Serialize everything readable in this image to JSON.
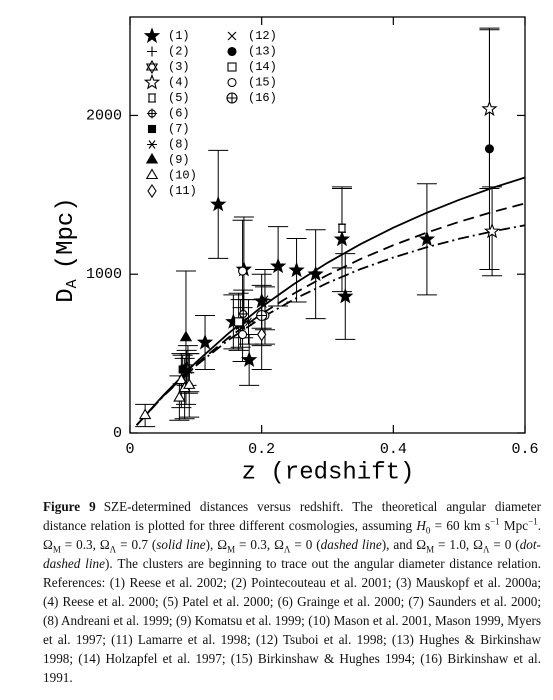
{
  "chart_data": {
    "type": "scatter",
    "xlabel": "z (redshift)",
    "ylabel": {
      "main": "D",
      "sub": "A",
      "unit": "(Mpc)"
    },
    "xlim": [
      0,
      0.6
    ],
    "ylim": [
      0,
      2620
    ],
    "xticks": [
      {
        "value": 0,
        "label": "0"
      },
      0.2,
      0.4,
      0.6
    ],
    "yticks": [
      0,
      1000,
      2000
    ],
    "series": [
      {
        "name": "(1)",
        "marker": "filled-star",
        "x": [
          0.134,
          0.173,
          0.225,
          0.253,
          0.282,
          0.322,
          0.327,
          0.451,
          0.168,
          0.181,
          0.114,
          0.157,
          0.2
        ],
        "values": [
          1440,
          1030,
          1050,
          1025,
          1000,
          1220,
          860,
          1220,
          690,
          460,
          570,
          700,
          830
        ],
        "errors": [
          340,
          330,
          250,
          200,
          280,
          330,
          270,
          350,
          150,
          160,
          170,
          170,
          170
        ]
      },
      {
        "name": "(2)",
        "marker": "plus",
        "x": [
          0.09
        ],
        "values": [
          380
        ],
        "errors": [
          120
        ]
      },
      {
        "name": "(3)",
        "marker": "star-of-david",
        "x": [
          0.086
        ],
        "values": [
          410
        ],
        "errors": [
          110
        ]
      },
      {
        "name": "(4)",
        "marker": "open-star",
        "x": [
          0.546,
          0.55
        ],
        "values": [
          2040,
          1270
        ],
        "errors": [
          500,
          280
        ]
      },
      {
        "name": "(5)",
        "marker": "notched-square",
        "x": [
          0.322
        ],
        "values": [
          1290
        ],
        "errors": [
          250
        ]
      },
      {
        "name": "(6)",
        "marker": "small-circle-plus",
        "x": [
          0.172
        ],
        "values": [
          750
        ],
        "errors": [
          150
        ]
      },
      {
        "name": "(7)",
        "marker": "filled-square",
        "x": [
          0.08
        ],
        "values": [
          400
        ],
        "errors": [
          90
        ]
      },
      {
        "name": "(8)",
        "marker": "asterisk",
        "x": [
          0.18,
          0.205
        ],
        "values": [
          700,
          840
        ],
        "errors": [
          140,
          190
        ]
      },
      {
        "name": "(9)",
        "marker": "filled-triangle",
        "x": [
          0.085
        ],
        "values": [
          600
        ],
        "errors": [
          420
        ]
      },
      {
        "name": "(10)",
        "marker": "open-triangle",
        "x": [
          0.023,
          0.078,
          0.083,
          0.09,
          0.075
        ],
        "values": [
          110,
          330,
          280,
          300,
          220
        ],
        "errors": [
          70,
          170,
          190,
          200,
          140
        ]
      },
      {
        "name": "(11)",
        "marker": "open-diamond",
        "x": [
          0.2
        ],
        "values": [
          620
        ],
        "errors": [
          220
        ]
      },
      {
        "name": "(12)",
        "marker": "cross",
        "x": [
          0.088
        ],
        "values": [
          400
        ],
        "errors": [
          150
        ]
      },
      {
        "name": "(13)",
        "marker": "filled-circle",
        "x": [
          0.546
        ],
        "values": [
          1790
        ],
        "errors": [
          760
        ]
      },
      {
        "name": "(14)",
        "marker": "open-square",
        "x": [
          0.165
        ],
        "values": [
          700
        ],
        "errors": [
          180
        ]
      },
      {
        "name": "(15)",
        "marker": "open-circle",
        "x": [
          0.171,
          0.171,
          0.205
        ],
        "values": [
          620,
          1020,
          740
        ],
        "errors": [
          170,
          320,
          180
        ]
      },
      {
        "name": "(16)",
        "marker": "circle-plus",
        "x": [
          0.2
        ],
        "values": [
          740
        ],
        "errors": [
          190
        ]
      }
    ],
    "line_x": [
      0.01,
      0.05,
      0.1,
      0.15,
      0.2,
      0.25,
      0.3,
      0.35,
      0.4,
      0.45,
      0.5,
      0.55,
      0.6
    ],
    "lines": [
      {
        "style": "solid",
        "values": [
          49,
          235,
          444,
          629,
          794,
          941,
          1072,
          1189,
          1293,
          1386,
          1469,
          1543,
          1609
        ]
      },
      {
        "style": "dashed",
        "values": [
          49,
          231,
          430,
          602,
          751,
          881,
          995,
          1095,
          1183,
          1261,
          1330,
          1391,
          1446
        ]
      },
      {
        "style": "dot-dashed",
        "values": [
          49,
          229,
          423,
          587,
          726,
          844,
          945,
          1032,
          1105,
          1169,
          1223,
          1269,
          1308
        ]
      }
    ]
  },
  "caption": [
    "Figure 9",
    "SZE-determined distances versus redshift. The theoretical angular diameter distance relation is plotted for three different cosmologies, assuming ",
    "H",
    "0",
    " = 60 km s",
    "−1",
    " Mpc",
    "−1",
    ". Ω",
    "M",
    " = 0.3, Ω",
    "Λ",
    " = 0.7 (",
    "solid line",
    "), Ω",
    "M",
    " = 0.3, Ω",
    "Λ",
    " = 0 (",
    "dashed line",
    "), and Ω",
    "M",
    " = 1.0, Ω",
    "Λ",
    " = 0 (",
    "dot-dashed line",
    "). The clusters are beginning to trace out the angular diameter distance relation. References: (1) Reese et al. 2002; (2) Pointecouteau et al. 2001; (3) Mauskopf et al. 2000a; (4) Reese et al. 2000; (5) Patel et al. 2000; (6) Grainge et al. 2000; (7) Saunders et al. 2000; (8) Andreani et al. 1999; (9) Komatsu et al. 1999; (10) Mason et al. 2001, Mason 1999, Myers et al. 1997; (11) Lamarre et al. 1998; (12) Tsuboi et al. 1998; (13) Hughes & Birkinshaw 1998; (14) Holzapfel et al. 1997; (15) Birkinshaw & Hughes 1994; (16) Birkinshaw et al. 1991."
  ]
}
